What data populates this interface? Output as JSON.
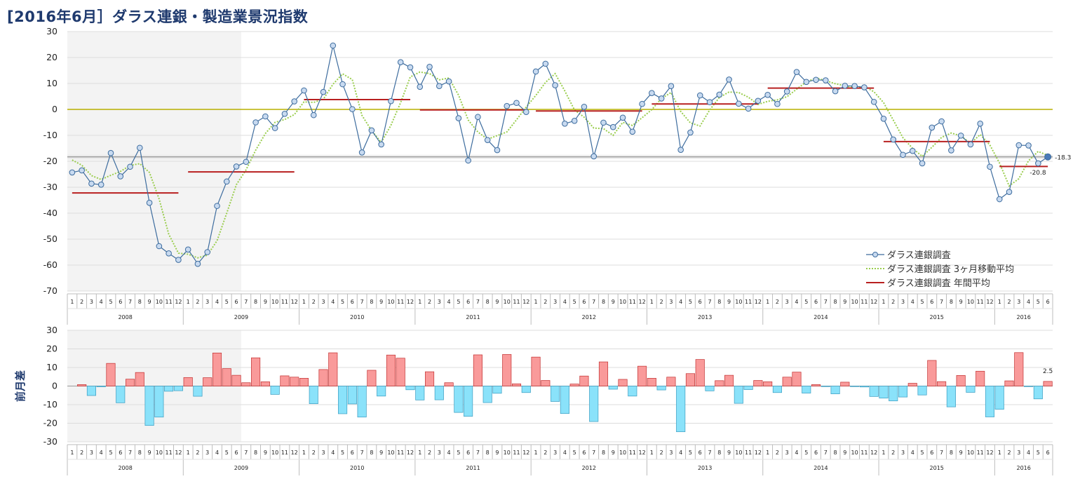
{
  "title": "[2016年6月］ダラス連銀・製造業景況指数",
  "colors": {
    "series_line": "#3d6c9e",
    "marker_fill": "#c8daf0",
    "moving_avg": "#9acd4e",
    "annual_avg": "#b82020",
    "zero_line": "#b8b000",
    "bar_positive": "#f99a9a",
    "bar_positive_edge": "#c23030",
    "bar_negative": "#8ae2fa",
    "bar_negative_edge": "#3a9cc0",
    "shade": "#f3f3f3",
    "title": "#1f3a6e"
  },
  "chart_data": [
    {
      "type": "line",
      "title": "[2016年6月］ダラス連銀・製造業景況指数",
      "ylim": [
        -70,
        30
      ],
      "yticks": [
        30,
        20,
        10,
        0,
        -10,
        -20,
        -30,
        -40,
        -50,
        -60,
        -70
      ],
      "month_labels": [
        "1",
        "2",
        "3",
        "4",
        "5",
        "6",
        "7",
        "8",
        "9",
        "10",
        "11",
        "12"
      ],
      "year_labels": [
        "2008",
        "2009",
        "2010",
        "2011",
        "2012",
        "2013",
        "2014",
        "2015",
        "2016"
      ],
      "shaded_period": {
        "from_index": 0,
        "to_index": 17
      },
      "series": [
        {
          "name": "ダラス連銀調査",
          "values": [
            -24.3,
            -23.5,
            -28.6,
            -29.0,
            -16.8,
            -25.8,
            -22.1,
            -14.8,
            -36.0,
            -52.7,
            -55.5,
            -58.0,
            -54.0,
            -59.5,
            -55.0,
            -37.2,
            -27.8,
            -22.0,
            -20.2,
            -5.0,
            -2.7,
            -7.2,
            -1.7,
            3.1,
            7.3,
            -2.2,
            6.7,
            24.6,
            9.7,
            0.1,
            -16.6,
            -8.1,
            -13.5,
            3.2,
            18.2,
            16.2,
            8.7,
            16.4,
            9.0,
            10.8,
            -3.4,
            -19.7,
            -2.9,
            -11.8,
            -15.7,
            1.3,
            2.5,
            -1.0,
            14.6,
            17.6,
            9.3,
            -5.5,
            -4.4,
            1.0,
            -18.1,
            -5.1,
            -6.8,
            -3.2,
            -8.6,
            2.1,
            6.3,
            4.2,
            9.0,
            -15.6,
            -8.9,
            5.4,
            2.8,
            5.7,
            11.5,
            2.2,
            0.3,
            3.3,
            5.6,
            2.1,
            6.9,
            14.4,
            10.6,
            11.4,
            11.2,
            7.0,
            9.1,
            9.0,
            8.5,
            2.9,
            -3.6,
            -11.6,
            -17.5,
            -16.0,
            -20.8,
            -7.0,
            -4.6,
            -15.8,
            -10.1,
            -13.5,
            -5.5,
            -22.1,
            -34.6,
            -31.8,
            -13.8,
            -13.9,
            -20.8,
            -18.3
          ]
        },
        {
          "name": "ダラス連銀調査 3ヶ月移動平均",
          "values": [
            -19.5,
            -21.5,
            -25.5,
            -27.0,
            -25.4,
            -23.9,
            -21.6,
            -20.9,
            -24.3,
            -34.5,
            -48.1,
            -55.4,
            -55.8,
            -57.2,
            -56.2,
            -50.6,
            -40.0,
            -29.0,
            -23.3,
            -15.7,
            -9.3,
            -5.0,
            -3.9,
            -2.0,
            2.9,
            2.7,
            3.9,
            9.7,
            13.7,
            11.5,
            -2.3,
            -8.2,
            -12.7,
            -6.1,
            2.6,
            12.5,
            14.4,
            13.8,
            11.4,
            12.1,
            5.5,
            -4.1,
            -8.7,
            -11.5,
            -10.1,
            -8.7,
            -4.0,
            0.9,
            5.4,
            10.4,
            13.8,
            7.1,
            -0.2,
            -3.0,
            -7.2,
            -7.4,
            -10.0,
            -5.0,
            -6.2,
            -3.2,
            -0.1,
            4.2,
            6.5,
            -0.8,
            -5.2,
            -6.4,
            -0.2,
            4.6,
            6.7,
            6.5,
            4.7,
            1.9,
            3.1,
            3.7,
            4.9,
            7.8,
            10.6,
            12.1,
            11.1,
            9.9,
            9.1,
            8.4,
            8.9,
            6.8,
            2.6,
            -4.1,
            -10.9,
            -15.0,
            -18.1,
            -14.6,
            -10.8,
            -9.1,
            -10.2,
            -13.1,
            -9.7,
            -13.7,
            -20.7,
            -29.5,
            -26.7,
            -19.8,
            -16.2,
            -17.7
          ]
        },
        {
          "name": "ダラス連銀調査 年間平均",
          "segments": [
            {
              "year": "2008",
              "value": -32.2
            },
            {
              "year": "2009",
              "value": -24.1
            },
            {
              "year": "2010",
              "value": 3.8
            },
            {
              "year": "2011",
              "value": -0.2
            },
            {
              "year": "2012",
              "value": -0.6
            },
            {
              "year": "2013",
              "value": 2.1
            },
            {
              "year": "2014",
              "value": 8.2
            },
            {
              "year": "2015",
              "value": -12.4
            },
            {
              "year": "2016",
              "value": -22.0
            }
          ]
        }
      ],
      "reference_line": -18.3,
      "annotations": [
        {
          "text": "-18.3",
          "index": 101,
          "value": -18.3
        },
        {
          "text": "-20.8",
          "index": 100,
          "value": -20.8
        }
      ],
      "legend_position": "bottom-right"
    },
    {
      "type": "bar",
      "ylabel": "前月差",
      "ylim": [
        -30,
        30
      ],
      "yticks": [
        30,
        20,
        10,
        0,
        -10,
        -20,
        -30
      ],
      "values": [
        0.0,
        0.8,
        -5.1,
        -0.4,
        12.2,
        -9.0,
        3.7,
        7.3,
        -21.2,
        -16.7,
        -2.8,
        -2.5,
        4.6,
        -5.5,
        4.5,
        17.8,
        9.4,
        5.8,
        1.8,
        15.2,
        2.3,
        -4.5,
        5.5,
        4.8,
        4.2,
        -9.5,
        8.9,
        17.9,
        -14.9,
        -9.6,
        -16.7,
        8.5,
        -5.4,
        16.7,
        15.0,
        -2.0,
        -7.5,
        7.7,
        -7.4,
        1.8,
        -14.2,
        -16.3,
        16.8,
        -8.9,
        -3.9,
        17.0,
        1.2,
        -3.5,
        15.6,
        3.0,
        -8.3,
        -14.8,
        1.1,
        5.4,
        -19.1,
        13.0,
        -1.7,
        3.6,
        -5.4,
        10.7,
        4.2,
        -2.1,
        4.8,
        -24.6,
        6.7,
        14.3,
        -2.6,
        2.9,
        5.8,
        -9.3,
        -1.9,
        3.0,
        2.3,
        -3.5,
        4.8,
        7.5,
        -3.8,
        0.8,
        -0.2,
        -4.2,
        2.1,
        -0.1,
        -0.5,
        -5.6,
        -6.5,
        -8.0,
        -5.9,
        1.5,
        -4.8,
        13.8,
        2.4,
        -11.2,
        5.7,
        -3.4,
        8.0,
        -16.6,
        -12.5,
        2.8,
        18.0,
        -0.1,
        -6.9,
        2.5
      ],
      "annotations": [
        {
          "text": "2.5",
          "index": 101,
          "value": 2.5
        }
      ]
    }
  ]
}
